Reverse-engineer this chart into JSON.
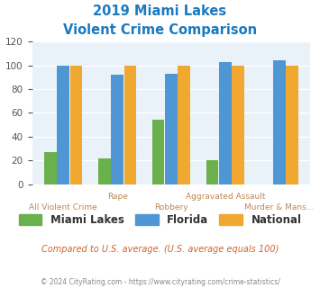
{
  "title_line1": "2019 Miami Lakes",
  "title_line2": "Violent Crime Comparison",
  "categories": [
    "All Violent Crime",
    "Rape",
    "Robbery",
    "Aggravated Assault",
    "Murder & Mans..."
  ],
  "miami_lakes": [
    27,
    22,
    54,
    20,
    0
  ],
  "florida": [
    100,
    92,
    93,
    103,
    104
  ],
  "national": [
    100,
    100,
    100,
    100,
    100
  ],
  "colors": {
    "miami_lakes": "#6ab04c",
    "florida": "#4e96d4",
    "national": "#f0a830"
  },
  "ylim": [
    0,
    120
  ],
  "yticks": [
    0,
    20,
    40,
    60,
    80,
    100,
    120
  ],
  "xlabel_color": "#bb8855",
  "title_color": "#1a7abf",
  "bg_color": "#e8f2f8",
  "footnote1": "Compared to U.S. average. (U.S. average equals 100)",
  "footnote2": "© 2024 CityRating.com - https://www.cityrating.com/crime-statistics/",
  "footnote1_color": "#cc6633",
  "footnote2_color": "#888888"
}
